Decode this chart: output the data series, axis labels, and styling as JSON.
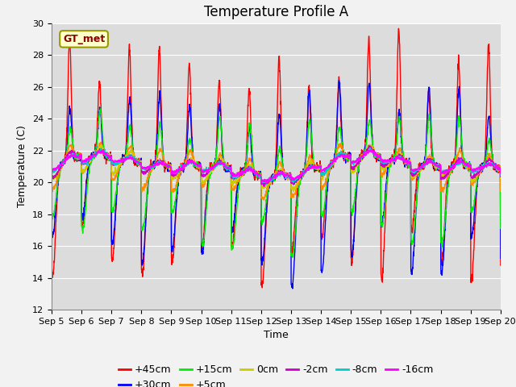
{
  "title": "Temperature Profile A",
  "xlabel": "Time",
  "ylabel": "Temperature (C)",
  "ylim": [
    12,
    30
  ],
  "xlim": [
    0,
    15
  ],
  "x_tick_labels": [
    "Sep 5",
    "Sep 6",
    "Sep 7",
    "Sep 8",
    "Sep 9",
    "Sep 10",
    "Sep 11",
    "Sep 12",
    "Sep 13",
    "Sep 14",
    "Sep 15",
    "Sep 16",
    "Sep 17",
    "Sep 18",
    "Sep 19",
    "Sep 20"
  ],
  "annotation": "GT_met",
  "series_colors": [
    "#FF0000",
    "#0000FF",
    "#00EE00",
    "#FF8C00",
    "#CCCC00",
    "#CC00CC",
    "#00CCCC",
    "#FF00FF"
  ],
  "series_labels": [
    "+45cm",
    "+30cm",
    "+15cm",
    "+5cm",
    "0cm",
    "-2cm",
    "-8cm",
    "-16cm"
  ],
  "background_color": "#E8E8E8",
  "plot_bg_color": "#DCDCDC",
  "title_fontsize": 12,
  "label_fontsize": 9,
  "tick_fontsize": 8,
  "legend_fontsize": 9,
  "n_points": 2160,
  "days": 15,
  "base_temp": 21.0
}
